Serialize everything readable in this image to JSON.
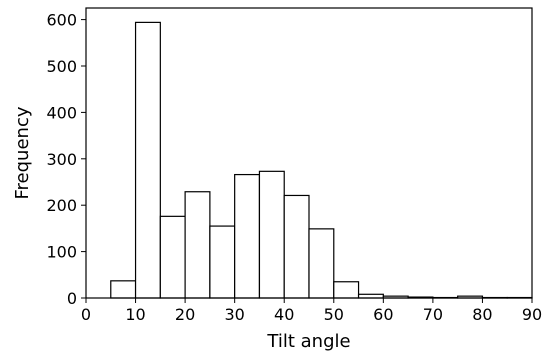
{
  "chart_data": {
    "type": "bar",
    "subtype": "histogram",
    "title": "",
    "xlabel": "Tilt angle",
    "ylabel": "Frequency",
    "xlim": [
      0,
      90
    ],
    "ylim": [
      0,
      625
    ],
    "xticks": [
      0,
      10,
      20,
      30,
      40,
      50,
      60,
      70,
      80,
      90
    ],
    "yticks": [
      0,
      100,
      200,
      300,
      400,
      500,
      600
    ],
    "bin_width": 5,
    "bins": [
      {
        "start": 5,
        "end": 10,
        "value": 37
      },
      {
        "start": 10,
        "end": 15,
        "value": 594
      },
      {
        "start": 15,
        "end": 20,
        "value": 176
      },
      {
        "start": 20,
        "end": 25,
        "value": 229
      },
      {
        "start": 25,
        "end": 30,
        "value": 155
      },
      {
        "start": 30,
        "end": 35,
        "value": 266
      },
      {
        "start": 35,
        "end": 40,
        "value": 273
      },
      {
        "start": 40,
        "end": 45,
        "value": 221
      },
      {
        "start": 45,
        "end": 50,
        "value": 149
      },
      {
        "start": 50,
        "end": 55,
        "value": 35
      },
      {
        "start": 55,
        "end": 60,
        "value": 8
      },
      {
        "start": 60,
        "end": 65,
        "value": 4
      },
      {
        "start": 65,
        "end": 70,
        "value": 2
      },
      {
        "start": 70,
        "end": 75,
        "value": 1
      },
      {
        "start": 75,
        "end": 80,
        "value": 4
      },
      {
        "start": 80,
        "end": 85,
        "value": 1
      },
      {
        "start": 85,
        "end": 90,
        "value": 1
      }
    ],
    "grid": false,
    "colors": {
      "bar_fill": "#ffffff",
      "bar_edge": "#000000",
      "axis": "#000000"
    }
  }
}
